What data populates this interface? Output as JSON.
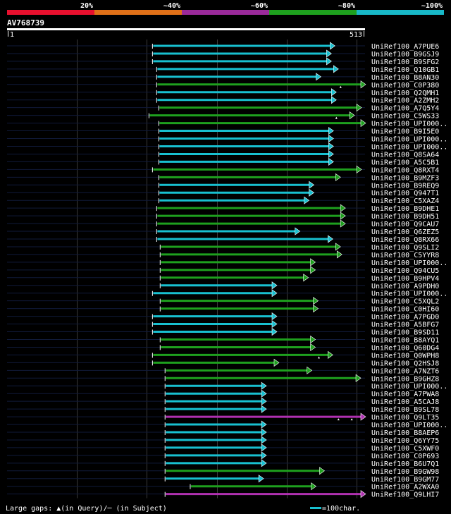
{
  "query": {
    "name": "AV768739",
    "start_label": "1",
    "end_label": "513",
    "length": 513
  },
  "identity_legend": [
    {
      "label": "20%",
      "color": "#e8102e"
    },
    {
      "label": "~40%",
      "color": "#e07018"
    },
    {
      "label": "~60%",
      "color": "#9a2a9a"
    },
    {
      "label": "~80%",
      "color": "#1ea01e"
    },
    {
      "label": "~100%",
      "color": "#18b8c8"
    }
  ],
  "footer": {
    "gaps_text": "Large gaps: ▲(in Query)/─ (in Subject)",
    "scale_text": "=100char."
  },
  "chart_data": {
    "type": "alignment",
    "title": "AV768739",
    "x_range": [
      1,
      513
    ],
    "colors": {
      "cyan": "#18c0d0",
      "green": "#1ea01e",
      "magenta": "#b030b0"
    },
    "hits": [
      {
        "name": "UniRef100_A7PUE6",
        "start": 209,
        "end": 470,
        "color": "cyan",
        "lstart": 216
      },
      {
        "name": "UniRef100_B9GSJ9",
        "start": 209,
        "end": 465,
        "color": "cyan",
        "lstart": 209
      },
      {
        "name": "UniRef100_B9SFG2",
        "start": 209,
        "end": 465,
        "color": "cyan",
        "lstart": 209
      },
      {
        "name": "UniRef100_Q10GB1",
        "start": 215,
        "end": 475,
        "color": "cyan"
      },
      {
        "name": "UniRef100_B8AN30",
        "start": 215,
        "end": 450,
        "color": "cyan"
      },
      {
        "name": "UniRef100_C0P380",
        "start": 215,
        "end": 514,
        "color": "green",
        "gaps": [
          478
        ]
      },
      {
        "name": "UniRef100_Q2QMH1",
        "start": 215,
        "end": 472,
        "color": "cyan"
      },
      {
        "name": "UniRef100_A2ZMH2",
        "start": 215,
        "end": 472,
        "color": "cyan"
      },
      {
        "name": "UniRef100_A7Q5Y4",
        "start": 218,
        "end": 508,
        "color": "green"
      },
      {
        "name": "UniRef100_C5WS33",
        "start": 204,
        "end": 498,
        "color": "green",
        "gaps": [
          472
        ]
      },
      {
        "name": "UniRef100_UPI000..",
        "start": 218,
        "end": 514,
        "color": "green"
      },
      {
        "name": "UniRef100_B9I5E0",
        "start": 218,
        "end": 468,
        "color": "cyan"
      },
      {
        "name": "UniRef100_UPI000..",
        "start": 218,
        "end": 468,
        "color": "cyan"
      },
      {
        "name": "UniRef100_UPI000..",
        "start": 218,
        "end": 468,
        "color": "cyan"
      },
      {
        "name": "UniRef100_Q8SA64",
        "start": 218,
        "end": 468,
        "color": "cyan"
      },
      {
        "name": "UniRef100_A5C5B1",
        "start": 218,
        "end": 468,
        "color": "cyan"
      },
      {
        "name": "UniRef100_Q8RXT4",
        "start": 209,
        "end": 508,
        "color": "green"
      },
      {
        "name": "UniRef100_B9MZF3",
        "start": 218,
        "end": 478,
        "color": "green"
      },
      {
        "name": "UniRef100_B9REQ9",
        "start": 218,
        "end": 440,
        "color": "cyan"
      },
      {
        "name": "UniRef100_Q947T1",
        "start": 218,
        "end": 440,
        "color": "cyan"
      },
      {
        "name": "UniRef100_C5XAZ4",
        "start": 218,
        "end": 433,
        "color": "cyan"
      },
      {
        "name": "UniRef100_B9DHE1",
        "start": 215,
        "end": 485,
        "color": "green"
      },
      {
        "name": "UniRef100_B9DH51",
        "start": 215,
        "end": 485,
        "color": "green"
      },
      {
        "name": "UniRef100_Q9CAU7",
        "start": 215,
        "end": 485,
        "color": "green"
      },
      {
        "name": "UniRef100_Q6ZEZ5",
        "start": 215,
        "end": 420,
        "color": "cyan"
      },
      {
        "name": "UniRef100_Q8RX66",
        "start": 215,
        "end": 467,
        "color": "cyan"
      },
      {
        "name": "UniRef100_Q9SLI2",
        "start": 220,
        "end": 478,
        "color": "green"
      },
      {
        "name": "UniRef100_C5YYR8",
        "start": 220,
        "end": 480,
        "color": "green"
      },
      {
        "name": "UniRef100_UPI000..",
        "start": 220,
        "end": 442,
        "color": "green"
      },
      {
        "name": "UniRef100_Q94CU5",
        "start": 220,
        "end": 442,
        "color": "green"
      },
      {
        "name": "UniRef100_B9HPV4",
        "start": 220,
        "end": 432,
        "color": "green"
      },
      {
        "name": "UniRef100_A9PDH0",
        "start": 220,
        "end": 387,
        "color": "cyan"
      },
      {
        "name": "UniRef100_UPI000..",
        "start": 209,
        "end": 387,
        "color": "cyan"
      },
      {
        "name": "UniRef100_C5XQL2",
        "start": 220,
        "end": 446,
        "color": "green"
      },
      {
        "name": "UniRef100_C0HI60",
        "start": 220,
        "end": 446,
        "color": "green"
      },
      {
        "name": "UniRef100_A7PGD0",
        "start": 209,
        "end": 387,
        "color": "cyan"
      },
      {
        "name": "UniRef100_A5BFG7",
        "start": 209,
        "end": 387,
        "color": "cyan"
      },
      {
        "name": "UniRef100_B9SD11",
        "start": 209,
        "end": 387,
        "color": "cyan"
      },
      {
        "name": "UniRef100_B8AYQ1",
        "start": 220,
        "end": 442,
        "color": "green"
      },
      {
        "name": "UniRef100_Q60DG4",
        "start": 220,
        "end": 442,
        "color": "green"
      },
      {
        "name": "UniRef100_Q0WPH8",
        "start": 209,
        "end": 467,
        "color": "green",
        "gaps": [
          447
        ]
      },
      {
        "name": "UniRef100_Q2HSJ8",
        "start": 209,
        "end": 390,
        "color": "green"
      },
      {
        "name": "UniRef100_A7NZT6",
        "start": 227,
        "end": 437,
        "color": "green"
      },
      {
        "name": "UniRef100_B9GHZ8",
        "start": 227,
        "end": 507,
        "color": "green"
      },
      {
        "name": "UniRef100_UPI000..",
        "start": 227,
        "end": 372,
        "color": "cyan"
      },
      {
        "name": "UniRef100_A7PWA8",
        "start": 227,
        "end": 372,
        "color": "cyan"
      },
      {
        "name": "UniRef100_A5CAJ8",
        "start": 227,
        "end": 372,
        "color": "cyan"
      },
      {
        "name": "UniRef100_B9SL78",
        "start": 227,
        "end": 372,
        "color": "cyan"
      },
      {
        "name": "UniRef100_Q9LT35",
        "start": 227,
        "end": 514,
        "color": "magenta",
        "gaps": [
          475,
          494
        ]
      },
      {
        "name": "UniRef100_UPI000..",
        "start": 227,
        "end": 372,
        "color": "cyan"
      },
      {
        "name": "UniRef100_B8AEP6",
        "start": 227,
        "end": 372,
        "color": "cyan"
      },
      {
        "name": "UniRef100_Q6YY75",
        "start": 227,
        "end": 372,
        "color": "cyan"
      },
      {
        "name": "UniRef100_C5XWF0",
        "start": 227,
        "end": 372,
        "color": "cyan"
      },
      {
        "name": "UniRef100_C0P693",
        "start": 227,
        "end": 372,
        "color": "cyan"
      },
      {
        "name": "UniRef100_B6U7Q1",
        "start": 227,
        "end": 372,
        "color": "cyan"
      },
      {
        "name": "UniRef100_B9GW98",
        "start": 227,
        "end": 455,
        "color": "green"
      },
      {
        "name": "UniRef100_B9GM77",
        "start": 227,
        "end": 368,
        "color": "cyan"
      },
      {
        "name": "UniRef100_A2WXA0",
        "start": 263,
        "end": 443,
        "color": "green"
      },
      {
        "name": "UniRef100_Q9LHI7",
        "start": 227,
        "end": 514,
        "color": "magenta"
      }
    ]
  }
}
